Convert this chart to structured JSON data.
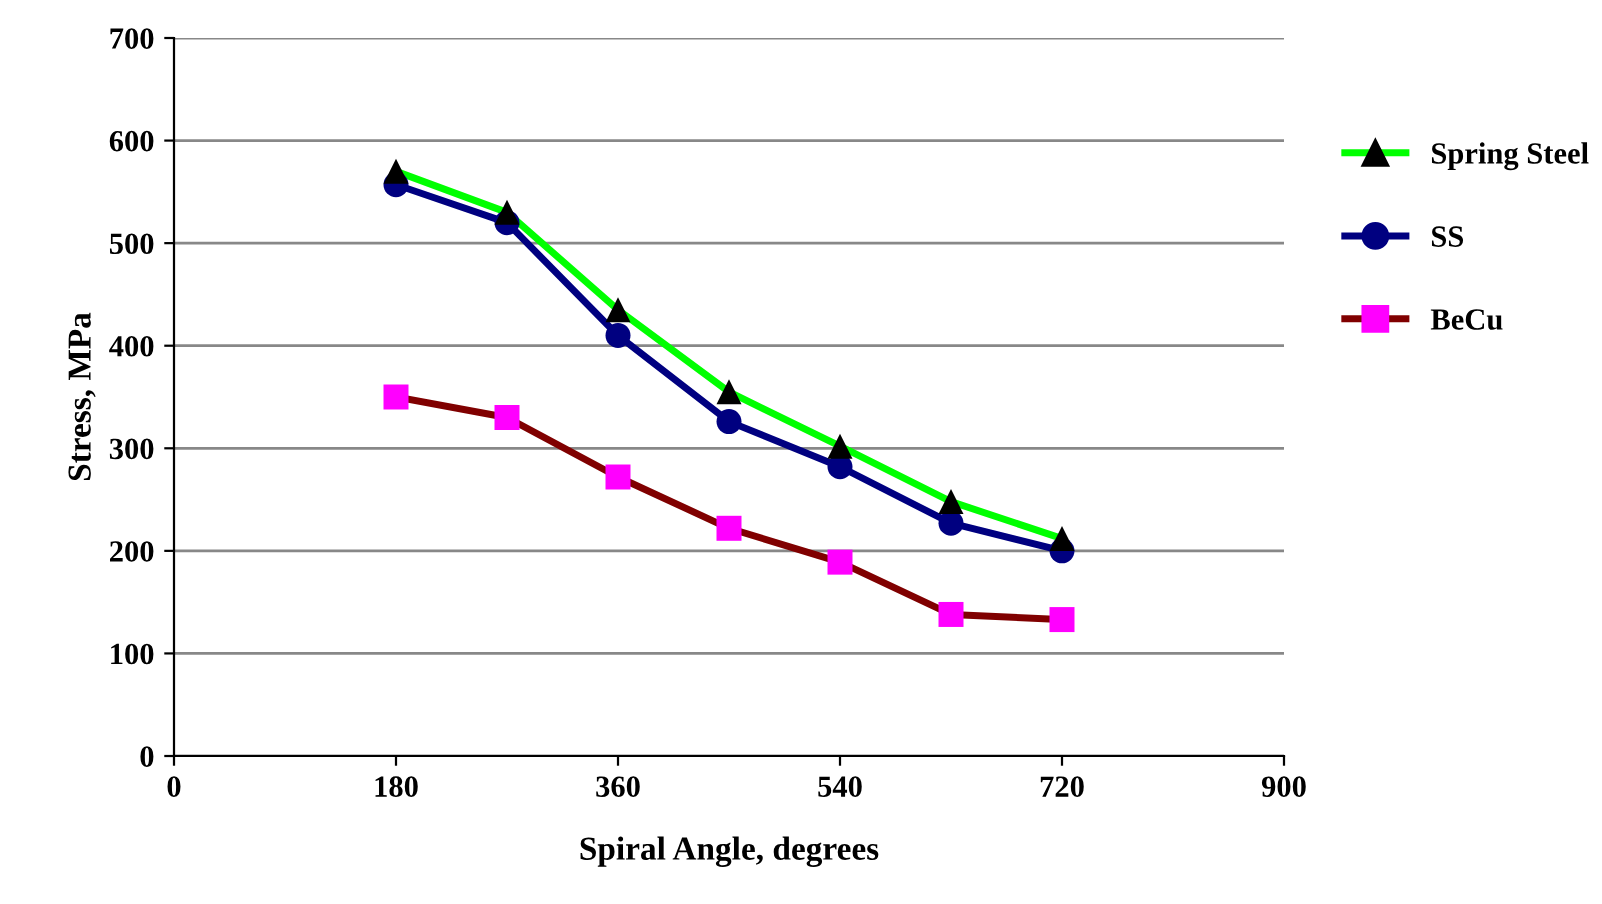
{
  "chart_data": {
    "type": "line",
    "xlabel": "Spiral Angle, degrees",
    "ylabel": "Stress, MPa",
    "x": [
      180,
      270,
      360,
      450,
      540,
      630,
      720
    ],
    "series": [
      {
        "name": "Spring Steel",
        "color": "#00ff00",
        "colors": [
          "#000000",
          "#000000",
          "#000000",
          "#000000",
          "#000000",
          "#000000",
          "#000000"
        ],
        "marker": "triangle",
        "values": [
          570,
          530,
          435,
          355,
          302,
          248,
          212
        ]
      },
      {
        "name": "SS",
        "color": "#000080",
        "colors": [
          "#000080",
          "#000080",
          "#000080",
          "#000080",
          "#000080",
          "#000080",
          "#000080"
        ],
        "marker": "circle",
        "values": [
          557,
          520,
          410,
          326,
          282,
          227,
          200
        ]
      },
      {
        "name": "BeCu",
        "color": "#800000",
        "colors": [
          "#ff00ff",
          "#ff00ff",
          "#ff00ff",
          "#ff00ff",
          "#ff00ff",
          "#ff00ff",
          "#ff00ff"
        ],
        "marker": "square",
        "values": [
          350,
          330,
          272,
          222,
          189,
          138,
          133
        ]
      }
    ],
    "xlim": [
      0,
      900
    ],
    "xticks": [
      0,
      180,
      360,
      540,
      720,
      900
    ],
    "ylim": [
      0,
      700
    ],
    "yticks": [
      0,
      100,
      200,
      300,
      400,
      500,
      600,
      700
    ],
    "grid": "y",
    "legend": "right",
    "line_style": "solid"
  }
}
